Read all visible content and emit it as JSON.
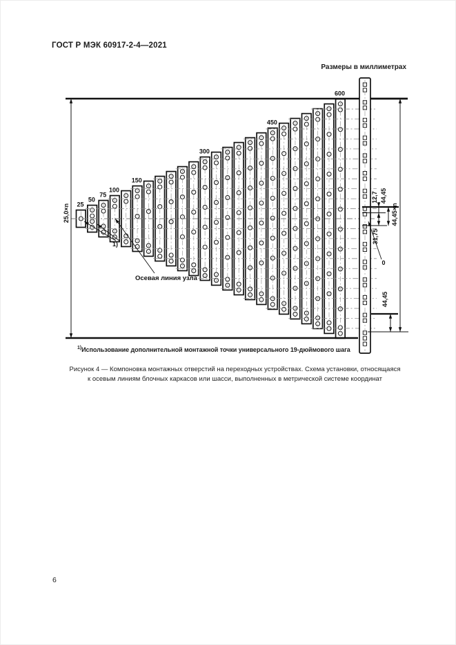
{
  "page": {
    "standard_code": "ГОСТ Р МЭК 60917-2-4—2021",
    "units_note": "Размеры в миллиметрах",
    "page_number": "6"
  },
  "footnote": {
    "marker": "1)",
    "text": "Использование дополнительной монтажной точки универсального 19-дюймового шага"
  },
  "figure_caption": {
    "line1": "Рисунок 4 — Компоновка монтажных отверстий на переходных устройствах. Схема установки, относящаяся",
    "line2": "к осевым линиям блочных каркасов или шасси, выполненных в метрической системе координат"
  },
  "diagram": {
    "type": "technical-drawing",
    "description": "Компоновка монтажных отверстий на переходных устройствах",
    "bar_heights_mm": [
      25,
      50,
      75,
      100,
      125,
      150,
      175,
      200,
      225,
      250,
      275,
      300,
      325,
      350,
      375,
      400,
      425,
      450,
      475,
      500,
      525,
      550,
      575,
      600
    ],
    "labeled_heights_mm": [
      25,
      50,
      75,
      100,
      150,
      300,
      450,
      600
    ],
    "axis_line_label": "Осевая линия узла",
    "callout_marker": "1)",
    "dimensions": {
      "metric_pitch": "25,0×n",
      "universal_offset_top": "12,7",
      "universal_pitch": "44,45",
      "universal_offset_bottom": "31,75",
      "universal_span": "44,45×n",
      "universal_bottom_pitch": "44,45",
      "zero_point": "0"
    }
  }
}
